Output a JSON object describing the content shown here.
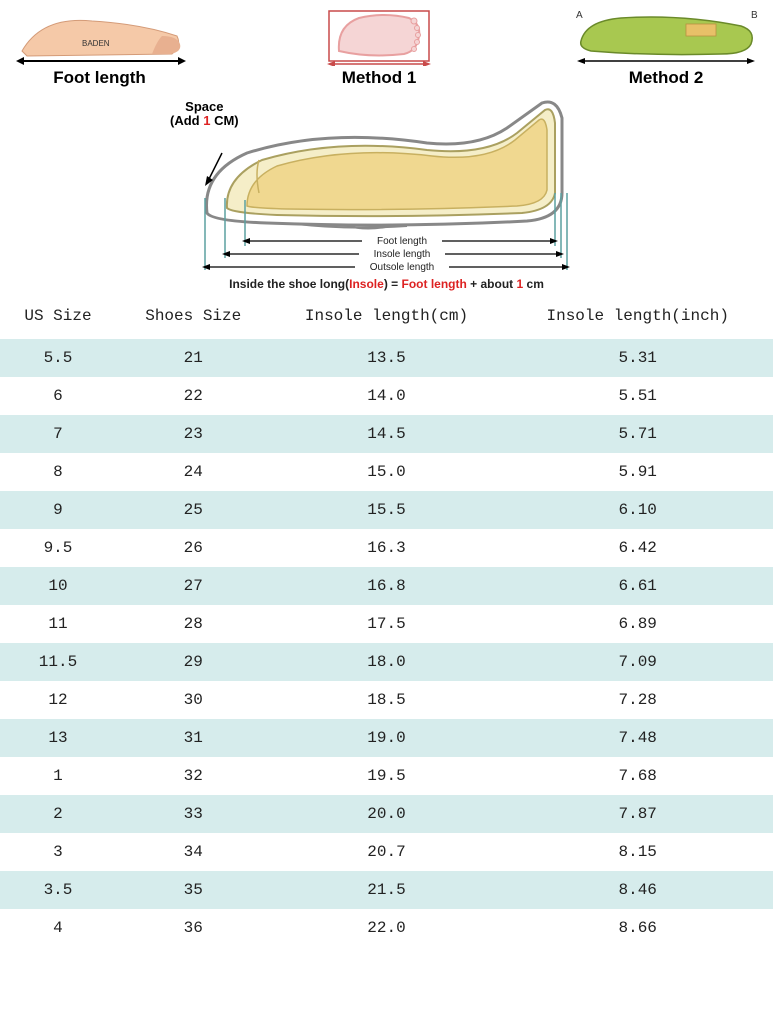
{
  "methods": {
    "foot_length_label": "Foot length",
    "method1_label": "Method 1",
    "method2_label": "Method 2"
  },
  "diagram": {
    "space_label_1": "Space",
    "space_label_2_pre": "(Add ",
    "space_label_2_num": "1",
    "space_label_2_post": " CM)",
    "foot_length": "Foot length",
    "insole_length": "Insole length",
    "outsole_length": "Outsole length",
    "formula_pre": "Inside the shoe long(",
    "formula_insole": "Insole",
    "formula_mid1": ") = ",
    "formula_foot": "Foot length",
    "formula_mid2": " + about ",
    "formula_num": "1",
    "formula_end": " cm"
  },
  "table": {
    "columns": [
      "US Size",
      "Shoes Size",
      "Insole length(cm)",
      "Insole length(inch)"
    ],
    "col_widths": [
      "15%",
      "20%",
      "30%",
      "35%"
    ],
    "header_fontsize": 16,
    "cell_fontsize": 16,
    "font_family": "Courier New",
    "alt_row_bg": "#d6ecec",
    "plain_row_bg": "#ffffff",
    "text_color": "#222222",
    "rows": [
      [
        "5.5",
        "21",
        "13.5",
        "5.31"
      ],
      [
        "6",
        "22",
        "14.0",
        "5.51"
      ],
      [
        "7",
        "23",
        "14.5",
        "5.71"
      ],
      [
        "8",
        "24",
        "15.0",
        "5.91"
      ],
      [
        "9",
        "25",
        "15.5",
        "6.10"
      ],
      [
        "9.5",
        "26",
        "16.3",
        "6.42"
      ],
      [
        "10",
        "27",
        "16.8",
        "6.61"
      ],
      [
        "11",
        "28",
        "17.5",
        "6.89"
      ],
      [
        "11.5",
        "29",
        "18.0",
        "7.09"
      ],
      [
        "12",
        "30",
        "18.5",
        "7.28"
      ],
      [
        "13",
        "31",
        "19.0",
        "7.48"
      ],
      [
        "1",
        "32",
        "19.5",
        "7.68"
      ],
      [
        "2",
        "33",
        "20.0",
        "7.87"
      ],
      [
        "3",
        "34",
        "20.7",
        "8.15"
      ],
      [
        "3.5",
        "35",
        "21.5",
        "8.46"
      ],
      [
        "4",
        "36",
        "22.0",
        "8.66"
      ]
    ]
  },
  "colors": {
    "foot_skin": "#f5c9a8",
    "foot_shadow": "#d49b78",
    "outline_pink": "#e8a0a0",
    "outline_red": "#c94a4a",
    "insole_green": "#a8c850",
    "insole_dark": "#6a8a2a",
    "shoe_outline": "#888888",
    "shoe_fill": "#f5eec8",
    "shoe_foot": "#f0d890",
    "arrow_black": "#000000",
    "bracket_teal": "#5aa0a0"
  }
}
